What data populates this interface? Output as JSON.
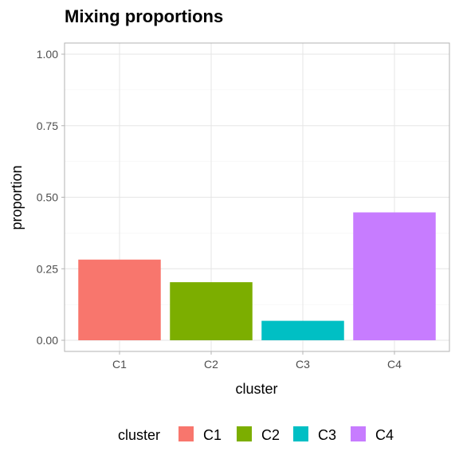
{
  "chart_data": {
    "type": "bar",
    "title": "Mixing proportions",
    "xlabel": "cluster",
    "ylabel": "proportion",
    "categories": [
      "C1",
      "C2",
      "C3",
      "C4"
    ],
    "values": [
      0.282,
      0.203,
      0.068,
      0.447
    ],
    "colors": [
      "#F8766D",
      "#7CAE00",
      "#00BFC4",
      "#C77CFF"
    ],
    "ylim": [
      0,
      1
    ],
    "yticks": [
      0,
      0.25,
      0.5,
      0.75,
      1
    ],
    "ytick_labels": [
      "0.00",
      "0.25",
      "0.50",
      "0.75",
      "1.00"
    ],
    "grid": true,
    "legend": {
      "title": "cluster",
      "position": "bottom",
      "entries": [
        "C1",
        "C2",
        "C3",
        "C4"
      ]
    }
  }
}
